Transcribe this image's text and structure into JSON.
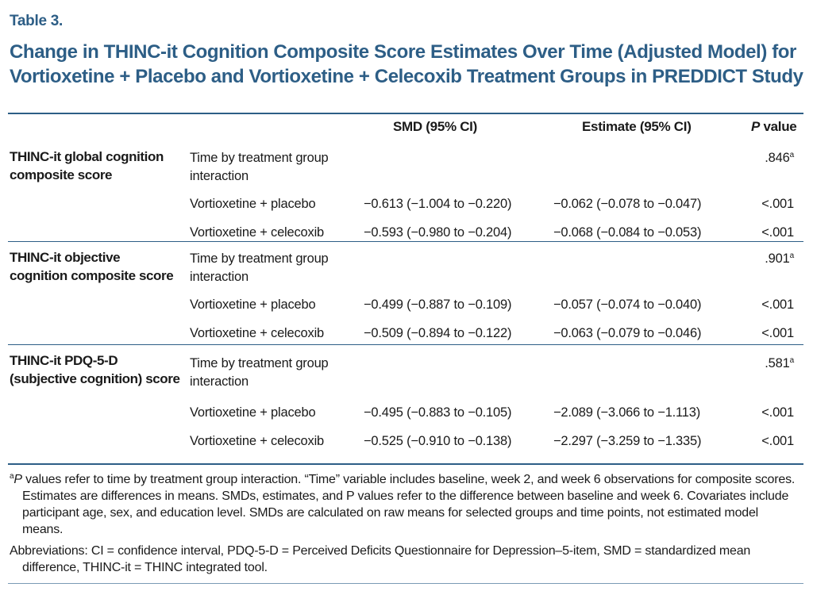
{
  "label": "Table 3.",
  "title": "Change in THINC-it Cognition Composite Score Estimates Over Time (Adjusted Model) for Vortioxetine + Placebo and Vortioxetine + Celecoxib Treatment Groups in PREDDICT Study",
  "colors": {
    "accent": "#2d5e86"
  },
  "headers": {
    "smd": "SMD (95% CI)",
    "estimate": "Estimate (95% CI)",
    "p_italic": "P",
    "p_rest": " value"
  },
  "groups": [
    {
      "label": "THINC-it global cognition composite score",
      "rows": [
        {
          "desc": "Time by treatment group interaction",
          "smd": "",
          "estimate": "",
          "p": ".846",
          "p_sup": "a"
        },
        {
          "desc": "Vortioxetine + placebo",
          "smd": "−0.613 (−1.004 to −0.220)",
          "estimate": "−0.062 (−0.078 to −0.047)",
          "p": "<.001",
          "p_sup": ""
        },
        {
          "desc": "Vortioxetine + celecoxib",
          "smd": "−0.593 (−0.980 to −0.204)",
          "estimate": "−0.068 (−0.084 to −0.053)",
          "p": "<.001",
          "p_sup": ""
        }
      ]
    },
    {
      "label": "THINC-it objective cognition composite score",
      "rows": [
        {
          "desc": "Time by treatment group interaction",
          "smd": "",
          "estimate": "",
          "p": ".901",
          "p_sup": "a"
        },
        {
          "desc": "Vortioxetine + placebo",
          "smd": "−0.499 (−0.887 to −0.109)",
          "estimate": "−0.057 (−0.074 to −0.040)",
          "p": "<.001",
          "p_sup": ""
        },
        {
          "desc": "Vortioxetine + celecoxib",
          "smd": "−0.509 (−0.894 to −0.122)",
          "estimate": "−0.063 (−0.079 to −0.046)",
          "p": "<.001",
          "p_sup": ""
        }
      ]
    },
    {
      "label": "THINC-it PDQ-5-D (subjective cognition) score",
      "rows": [
        {
          "desc": "Time by treatment group interaction",
          "smd": "",
          "estimate": "",
          "p": ".581",
          "p_sup": "a"
        },
        {
          "desc": "Vortioxetine + placebo",
          "smd": "−0.495 (−0.883 to −0.105)",
          "estimate": "−2.089 (−3.066 to −1.113)",
          "p": "<.001",
          "p_sup": ""
        },
        {
          "desc": "Vortioxetine + celecoxib",
          "smd": "−0.525 (−0.910 to −0.138)",
          "estimate": "−2.297 (−3.259 to −1.335)",
          "p": "<.001",
          "p_sup": ""
        }
      ]
    }
  ],
  "footnotes": {
    "a_marker": "a",
    "a_italic": "P",
    "a_text": " values refer to time by treatment group interaction. “Time” variable includes baseline, week 2, and week 6 observations for composite scores. Estimates are differences in means. SMDs, estimates, and P values refer to the difference between baseline and week 6. Covariates include participant age, sex, and education level. SMDs are calculated on raw means for selected groups and time points, not estimated model means.",
    "abbreviations": "Abbreviations: CI = confidence interval, PDQ-5-D = Perceived Deficits Questionnaire for Depression–5-item, SMD = standardized mean difference, THINC-it = THINC integrated tool."
  }
}
